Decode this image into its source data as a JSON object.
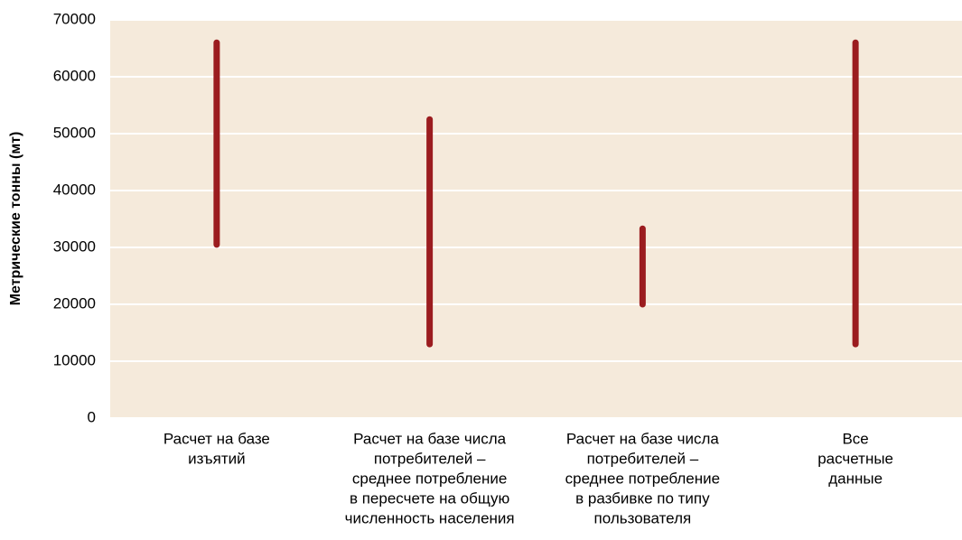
{
  "chart_data": {
    "type": "range",
    "ylabel": "Метрические тонны (мт)",
    "categories": [
      [
        "Расчет на базе",
        "изъятий"
      ],
      [
        "Расчет на базе числа",
        "потребителей –",
        "среднее потребление",
        "в пересчете на общую",
        "численность населения"
      ],
      [
        "Расчет на базе числа",
        "потребителей –",
        "среднее потребление",
        "в разбивке по типу",
        "пользователя"
      ],
      [
        "Все",
        "расчетные",
        "данные"
      ]
    ],
    "low": [
      30500,
      13000,
      20000,
      13000
    ],
    "high": [
      66000,
      52500,
      33300,
      66000
    ],
    "color": "#9b1c1f",
    "background": "#f5eadb",
    "ylim": [
      0,
      70000
    ],
    "yticks": [
      0,
      10000,
      20000,
      30000,
      40000,
      50000,
      60000,
      70000
    ],
    "grid": true
  }
}
